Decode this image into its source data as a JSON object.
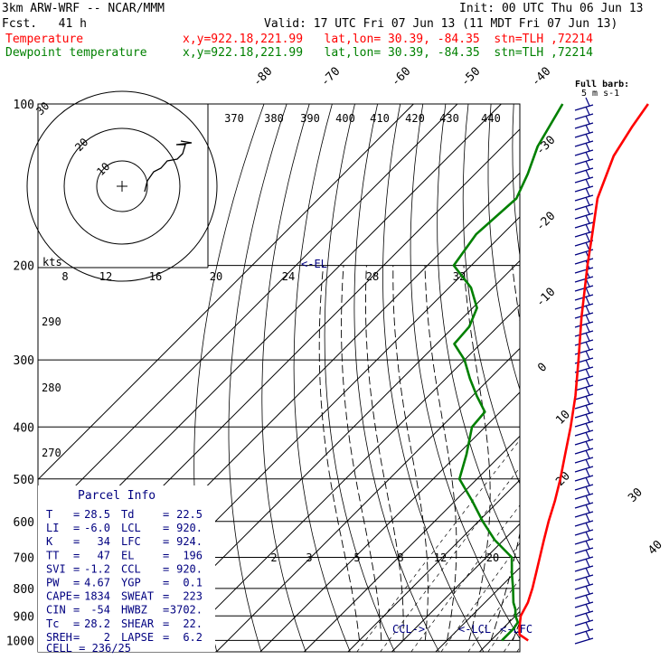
{
  "header": {
    "model": "3km ARW-WRF -- NCAR/MMM",
    "init": "Init: 00 UTC Thu 06 Jun 13",
    "fcst": "Fcst.   41 h",
    "valid": "Valid: 17 UTC Fri 07 Jun 13 (11 MDT Fri 07 Jun 13)",
    "temp_label": "Temperature",
    "temp_info": "x,y=922.18,221.99   lat,lon= 30.39, -84.35  stn=TLH ,72214",
    "dew_label": "Dewpoint temperature",
    "dew_info": "x,y=922.18,221.99   lat,lon= 30.39, -84.35  stn=TLH ,72214",
    "temp_color": "#ff0000",
    "dew_color": "#008000"
  },
  "chart_data": {
    "type": "line",
    "title": "",
    "pressure_ticks": [
      "100",
      "200",
      "300",
      "400",
      "500",
      "600",
      "700",
      "800",
      "900",
      "1000"
    ],
    "isotherm_labels": [
      "-80",
      "-70",
      "-60",
      "-50",
      "-40",
      "-30",
      "-20",
      "-10",
      "0",
      "10",
      "20",
      "30",
      "40"
    ],
    "theta_labels": [
      "370",
      "380",
      "390",
      "400",
      "410",
      "420",
      "430",
      "440"
    ],
    "mixing_ratio_labels_upper": [
      "8",
      "12",
      "16",
      "20",
      "24",
      "28",
      "32"
    ],
    "mixing_ratio_labels_lower": [
      "2",
      "3",
      "5",
      "8",
      "12",
      "20"
    ],
    "wetbulb_labels": [
      "290",
      "280",
      "270"
    ],
    "levels": {
      "el": "<-EL",
      "ccl": "CCL->",
      "lcl": "<-LCL",
      "lfc": "<-LFC"
    },
    "hodograph": {
      "unit": "kts",
      "rings": [
        "10",
        "20",
        "30"
      ]
    },
    "barb_legend": {
      "title": "Full barb:",
      "unit": "5 m s-1"
    },
    "series": [
      {
        "name": "Temperature",
        "color": "#ff0000",
        "points": [
          [
            1000,
            28.5
          ],
          [
            975,
            25.2
          ],
          [
            950,
            23.8
          ],
          [
            925,
            22.5
          ],
          [
            900,
            21.2
          ],
          [
            850,
            19.8
          ],
          [
            800,
            17.6
          ],
          [
            750,
            15.0
          ],
          [
            700,
            12.2
          ],
          [
            650,
            9.2
          ],
          [
            600,
            6.0
          ],
          [
            550,
            2.8
          ],
          [
            500,
            -1.0
          ],
          [
            450,
            -5.5
          ],
          [
            400,
            -10.5
          ],
          [
            350,
            -16.5
          ],
          [
            300,
            -24.0
          ],
          [
            250,
            -33.0
          ],
          [
            200,
            -43.5
          ],
          [
            175,
            -49.5
          ],
          [
            150,
            -56.5
          ],
          [
            125,
            -62.5
          ],
          [
            110,
            -65.0
          ],
          [
            100,
            -66.5
          ]
        ]
      },
      {
        "name": "Dewpoint temperature",
        "color": "#008000",
        "points": [
          [
            1000,
            22.5
          ],
          [
            975,
            22.5
          ],
          [
            950,
            22.5
          ],
          [
            925,
            22.0
          ],
          [
            900,
            20.0
          ],
          [
            875,
            18.5
          ],
          [
            850,
            16.5
          ],
          [
            800,
            13.2
          ],
          [
            750,
            9.5
          ],
          [
            700,
            5.8
          ],
          [
            650,
            -2.0
          ],
          [
            600,
            -9.0
          ],
          [
            550,
            -16.0
          ],
          [
            500,
            -24.0
          ],
          [
            450,
            -28.0
          ],
          [
            400,
            -33.0
          ],
          [
            375,
            -33.5
          ],
          [
            350,
            -39.0
          ],
          [
            325,
            -44.5
          ],
          [
            300,
            -50.0
          ],
          [
            280,
            -56.0
          ],
          [
            260,
            -56.5
          ],
          [
            240,
            -59.0
          ],
          [
            220,
            -65.0
          ],
          [
            200,
            -74.0
          ],
          [
            175,
            -76.0
          ],
          [
            150,
            -75.0
          ],
          [
            135,
            -78.0
          ],
          [
            120,
            -82.0
          ],
          [
            100,
            -86.0
          ]
        ]
      }
    ]
  },
  "parcel_info": {
    "title": "Parcel Info",
    "rows": [
      [
        "T",
        "=",
        "28.5",
        "Td",
        "=",
        "22.5"
      ],
      [
        "LI",
        "=",
        "-6.0",
        "LCL",
        "=",
        "920."
      ],
      [
        "K",
        "=",
        "34",
        "LFC",
        "=",
        "924."
      ],
      [
        "TT",
        "=",
        "47",
        "EL",
        "=",
        "196"
      ],
      [
        "SVI",
        "=",
        "-1.2",
        "CCL",
        "=",
        "920."
      ],
      [
        "PW",
        "=",
        "4.67",
        "YGP",
        "=",
        "0.1"
      ],
      [
        "CAPE",
        "=",
        "1834",
        "SWEAT",
        "=",
        "223"
      ],
      [
        "CIN",
        "=",
        "-54",
        "HWBZ",
        "=",
        "3702."
      ],
      [
        "Tc",
        "=",
        "28.2",
        "SHEAR",
        "=",
        "22."
      ],
      [
        "SREH",
        "=",
        "2",
        "LAPSE",
        "=",
        "6.2"
      ]
    ],
    "cell": "CELL = 236/25"
  }
}
